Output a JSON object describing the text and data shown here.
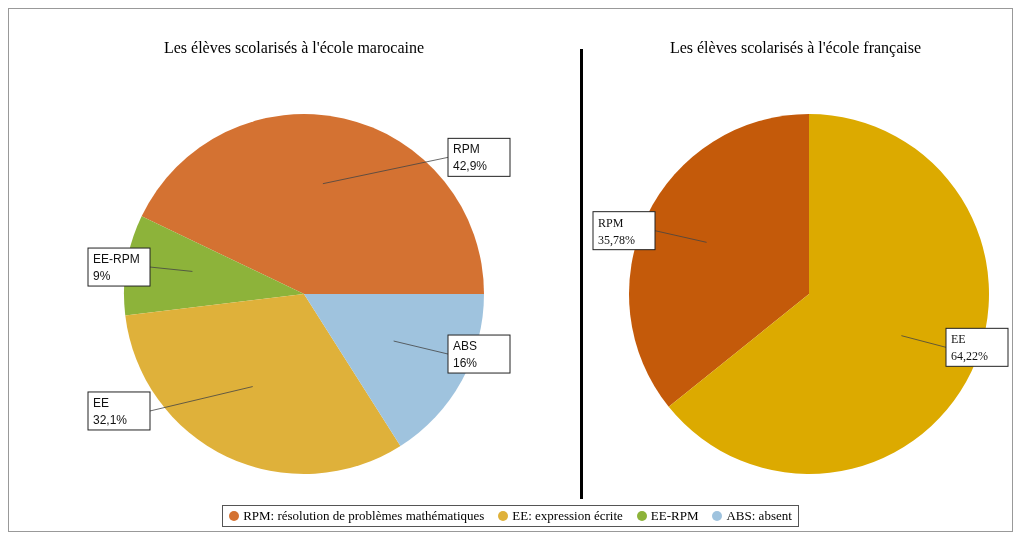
{
  "chart_data": [
    {
      "type": "pie",
      "title": "Les élèves scolarisés à l'école marocaine",
      "categories": [
        "RPM",
        "EE-RPM",
        "EE",
        "ABS"
      ],
      "values": [
        42.9,
        9,
        32.1,
        16
      ],
      "colors": [
        "#d47232",
        "#8db33a",
        "#dfb13a",
        "#9fc3de"
      ],
      "value_labels": [
        "42,9%",
        "9%",
        "32,1%",
        "16%"
      ],
      "legend_title": null,
      "annotations": [
        "RPM: résolution de problèmes mathématiques",
        "EE: expression écrite",
        "EE-RPM",
        "ABS: absent"
      ]
    },
    {
      "type": "pie",
      "title": "Les élèves scolarisés à l'école française",
      "categories": [
        "RPM",
        "EE"
      ],
      "values": [
        35.78,
        64.22
      ],
      "colors": [
        "#c45a0a",
        "#dcaa00"
      ],
      "value_labels": [
        "35,78%",
        "64,22%"
      ]
    }
  ]
}
